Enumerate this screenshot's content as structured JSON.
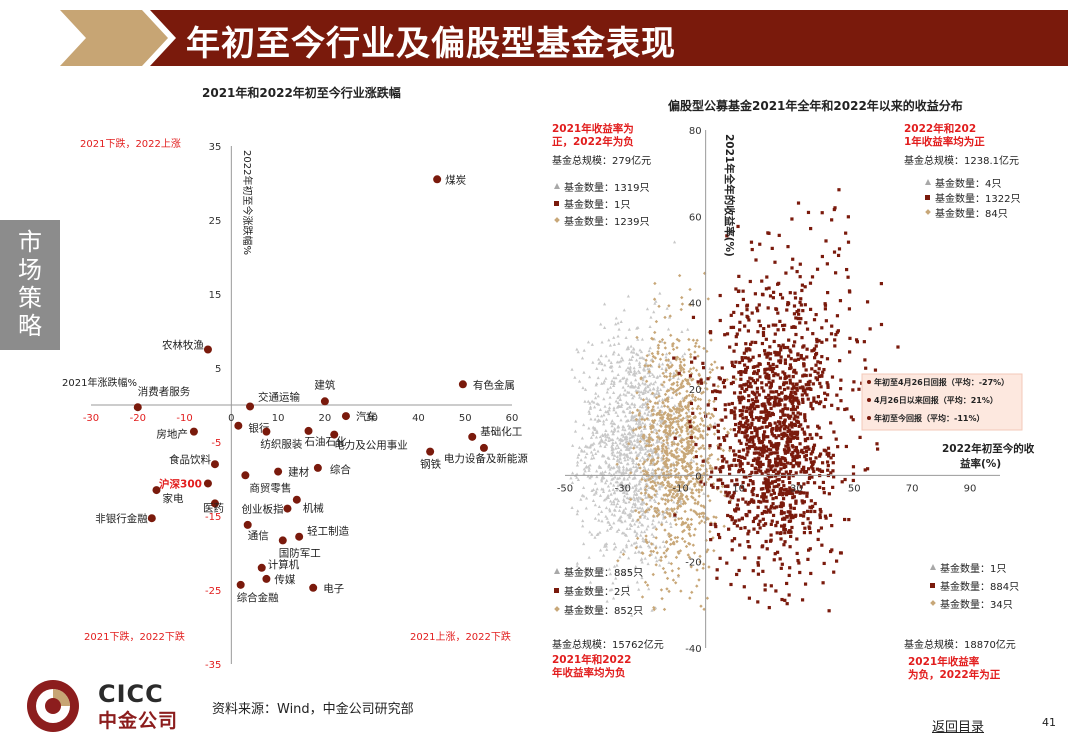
{
  "header": {
    "title": "年初至今行业及偏股型基金表现"
  },
  "side_tab": {
    "label": "市场策略"
  },
  "footer": {
    "source": "资料来源：Wind，中金公司研究部",
    "back_link": "返回目录",
    "page_number": "41"
  },
  "logo": {
    "latin": "CICC",
    "cn": "中金公司"
  },
  "colors": {
    "brand_red": "#7a1a0c",
    "accent_red": "#e21e1e",
    "tan": "#c8a778",
    "gray": "#c8c8c8"
  },
  "chart_data": [
    {
      "type": "scatter",
      "title": "2021年和2022年初至今行业涨跌幅",
      "xlabel": "2021年涨跌幅%",
      "ylabel": "2022年初至今涨跌幅%",
      "xlim": [
        -30,
        60
      ],
      "ylim": [
        -35,
        35
      ],
      "xticks": [
        -30,
        -20,
        -10,
        0,
        10,
        20,
        30,
        40,
        50,
        60
      ],
      "yticks": [
        35,
        25,
        15,
        5,
        -5,
        -15,
        -25,
        -35
      ],
      "quadrant_labels": {
        "top_left": "2021下跌，2022上涨",
        "bottom_left": "2021下跌，2022下跌",
        "bottom_right": "2021上涨，2022下跌"
      },
      "points": [
        {
          "label": "煤炭",
          "x": 44,
          "y": 30.5
        },
        {
          "label": "农林牧渔",
          "x": -5,
          "y": 7.5
        },
        {
          "label": "有色金属",
          "x": 49.5,
          "y": 2.8
        },
        {
          "label": "建筑",
          "x": 20,
          "y": 0.5
        },
        {
          "label": "交通运输",
          "x": 4,
          "y": -0.2
        },
        {
          "label": "消费者服务",
          "x": -20,
          "y": -0.3
        },
        {
          "label": "汽车",
          "x": 24.5,
          "y": -1.5
        },
        {
          "label": "银行",
          "x": 1.5,
          "y": -2.8
        },
        {
          "label": "纺织服装",
          "x": 7.5,
          "y": -3.6
        },
        {
          "label": "房地产",
          "x": -8,
          "y": -3.6
        },
        {
          "label": "石油石化",
          "x": 16.5,
          "y": -3.5
        },
        {
          "label": "电力及公用事业",
          "x": 22,
          "y": -4.0
        },
        {
          "label": "基础化工",
          "x": 51.5,
          "y": -4.3
        },
        {
          "label": "电力设备及新能源",
          "x": 54,
          "y": -5.8
        },
        {
          "label": "钢铁",
          "x": 42.5,
          "y": -6.3
        },
        {
          "label": "食品饮料",
          "x": -3.5,
          "y": -8.0
        },
        {
          "label": "综合",
          "x": 18.5,
          "y": -8.5
        },
        {
          "label": "建材",
          "x": 10,
          "y": -9.0
        },
        {
          "label": "商贸零售",
          "x": 3,
          "y": -9.5
        },
        {
          "label": "沪深300",
          "x": -5,
          "y": -10.6
        },
        {
          "label": "家电",
          "x": -16,
          "y": -11.5
        },
        {
          "label": "机械",
          "x": 14,
          "y": -12.8
        },
        {
          "label": "创业板指",
          "x": 12,
          "y": -14.0
        },
        {
          "label": "非银行金融",
          "x": -17,
          "y": -15.3
        },
        {
          "label": "医药",
          "x": -3.5,
          "y": -13.3
        },
        {
          "label": "轻工制造",
          "x": 14.5,
          "y": -17.8
        },
        {
          "label": "通信",
          "x": 3.5,
          "y": -16.2
        },
        {
          "label": "国防军工",
          "x": 11,
          "y": -18.3
        },
        {
          "label": "计算机",
          "x": 6.5,
          "y": -22.0
        },
        {
          "label": "传媒",
          "x": 7.5,
          "y": -23.5
        },
        {
          "label": "电子",
          "x": 17.5,
          "y": -24.7
        },
        {
          "label": "综合金融",
          "x": 2,
          "y": -24.3
        }
      ]
    },
    {
      "type": "scatter",
      "title": "偏股型公募基金2021年全年和2022年以来的收益分布",
      "xlabel": "2022年初至今的收益率(%)",
      "ylabel": "2021年全年的收益率(%)",
      "xlim": [
        -50,
        90
      ],
      "ylim": [
        -40,
        80
      ],
      "xticks": [
        -50,
        -30,
        -10,
        10,
        30,
        50,
        70,
        90
      ],
      "yticks": [
        80,
        60,
        40,
        20,
        0,
        -20,
        -40
      ],
      "quadrants": {
        "top_left": {
          "heading": "2021年收益率为正，2022年为负",
          "scale": "基金总规模：279亿元",
          "counts": [
            "基金数量：1319只",
            "基金数量：1只",
            "基金数量：1239只"
          ]
        },
        "top_right": {
          "heading": "2022年和2021年收益率均为正",
          "scale": "基金总规模：1238.1亿元",
          "counts": [
            "基金数量：4只",
            "基金数量：1322只",
            "基金数量：84只"
          ]
        },
        "bottom_left": {
          "heading": "2021年和2022年收益率均为负",
          "scale": "基金总规模：15762亿元",
          "counts": [
            "基金数量：885只",
            "基金数量：2只",
            "基金数量：852只"
          ]
        },
        "bottom_right": {
          "heading": "2021年收益率为负，2022年为正",
          "scale": "基金总规模：18870亿元",
          "counts": [
            "基金数量：1只",
            "基金数量：884只",
            "基金数量：34只"
          ]
        }
      },
      "series": [
        {
          "name": "年初至4月26日回报（平均：-27%）",
          "color": "#c8c8c8",
          "mean_x": -27
        },
        {
          "name": "4月26日以来回报（平均：21%）",
          "color": "#7a1a0c",
          "mean_x": 21
        },
        {
          "name": "年初至今回报（平均：-11%）",
          "color": "#c8a778",
          "mean_x": -11
        }
      ]
    }
  ]
}
